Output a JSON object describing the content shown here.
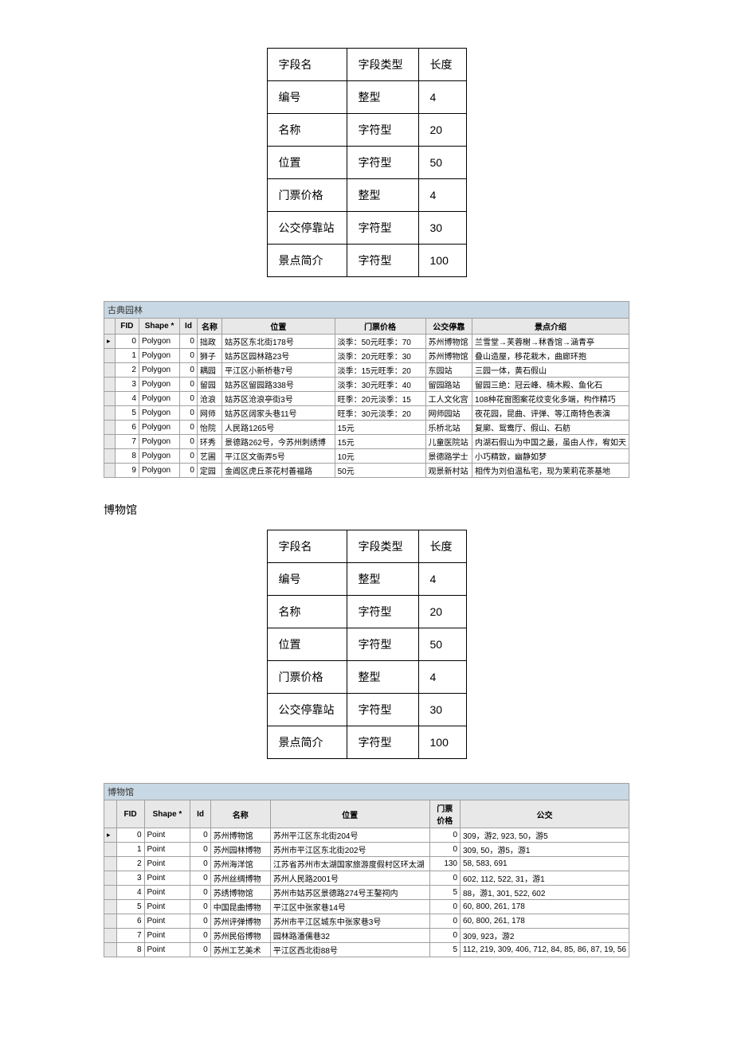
{
  "schema1": {
    "headers": [
      "字段名",
      "字段类型",
      "长度"
    ],
    "rows": [
      [
        "编号",
        "整型",
        "4"
      ],
      [
        "名称",
        "字符型",
        "20"
      ],
      [
        "位置",
        "字符型",
        "50"
      ],
      [
        "门票价格",
        "整型",
        "4"
      ],
      [
        "公交停靠站",
        "字符型",
        "30"
      ],
      [
        "景点简介",
        "字符型",
        "100"
      ]
    ]
  },
  "garden": {
    "title": "古典园林",
    "headers": [
      "FID",
      "Shape *",
      "Id",
      "名称",
      "位置",
      "门票价格",
      "公交停靠",
      "景点介绍"
    ],
    "rows": [
      [
        "0",
        "Polygon",
        "0",
        "拙政",
        "姑苏区东北街178号",
        "淡季：50元旺季：70",
        "苏州博物馆",
        "兰雪堂→芙蓉榭→秫香馆→涵青亭"
      ],
      [
        "1",
        "Polygon",
        "0",
        "狮子",
        "姑苏区园林路23号",
        "淡季：20元旺季：30",
        "苏州博物馆",
        "叠山造屋，移花栽木，曲廊环抱"
      ],
      [
        "2",
        "Polygon",
        "0",
        "耦园",
        "平江区小新桥巷7号",
        "淡季：15元旺季：20",
        "东园站",
        "三园一体，黄石假山"
      ],
      [
        "3",
        "Polygon",
        "0",
        "留园",
        "姑苏区留园路338号",
        "淡季：30元旺季：40",
        "留园路站",
        "留园三绝：冠云峰、楠木殿、鱼化石"
      ],
      [
        "4",
        "Polygon",
        "0",
        "沧浪",
        "姑苏区沧浪亭街3号",
        "旺季：20元淡季：15",
        "工人文化宫",
        "108种花窗图案花纹变化多端，构作精巧"
      ],
      [
        "5",
        "Polygon",
        "0",
        "网师",
        "姑苏区阔家头巷11号",
        "旺季：30元淡季：20",
        "网师园站",
        "夜花园，昆曲、评弹、等江南特色表演"
      ],
      [
        "6",
        "Polygon",
        "0",
        "怡院",
        "人民路1265号",
        "15元",
        "乐桥北站",
        "复廓、鸳鸯厅、假山、石舫"
      ],
      [
        "7",
        "Polygon",
        "0",
        "环秀",
        "景德路262号，今苏州刺绣博",
        "15元",
        "儿童医院站",
        "内湖石假山为中国之最，虽由人作，宥如天"
      ],
      [
        "8",
        "Polygon",
        "0",
        "艺圃",
        "平江区文衙弄5号",
        "10元",
        "景德路学士",
        "小巧精致，幽静如梦"
      ],
      [
        "9",
        "Polygon",
        "0",
        "定园",
        "金阊区虎丘茶花村善福路",
        "50元",
        "观景新村站",
        "相传为刘伯温私宅，现为茉莉花茶基地"
      ]
    ]
  },
  "section2_label": "博物馆",
  "schema2": {
    "headers": [
      "字段名",
      "字段类型",
      "长度"
    ],
    "rows": [
      [
        "编号",
        "整型",
        "4"
      ],
      [
        "名称",
        "字符型",
        "20"
      ],
      [
        "位置",
        "字符型",
        "50"
      ],
      [
        "门票价格",
        "整型",
        "4"
      ],
      [
        "公交停靠站",
        "字符型",
        "30"
      ],
      [
        "景点简介",
        "字符型",
        "100"
      ]
    ]
  },
  "museum": {
    "title": "博物馆",
    "headers": [
      "FID",
      "Shape *",
      "Id",
      "名称",
      "位置",
      "门票价格",
      "公交"
    ],
    "rows": [
      [
        "0",
        "Point",
        "0",
        "苏州博物馆",
        "苏州平江区东北街204号",
        "0",
        "309，游2, 923, 50，游5"
      ],
      [
        "1",
        "Point",
        "0",
        "苏州园林博物",
        "苏州市平江区东北街202号",
        "0",
        "309, 50，游5，游1"
      ],
      [
        "2",
        "Point",
        "0",
        "苏州海洋馆",
        "江苏省苏州市太湖国家旅游度假村区环太湖",
        "130",
        "58, 583, 691"
      ],
      [
        "3",
        "Point",
        "0",
        "苏州丝绸博物",
        "苏州人民路2001号",
        "0",
        "602, 112, 522, 31，游1"
      ],
      [
        "4",
        "Point",
        "0",
        "苏绣博物馆",
        "苏州市姑苏区景德路274号王鏊祠内",
        "5",
        "88，游1, 301, 522, 602"
      ],
      [
        "5",
        "Point",
        "0",
        "中国昆曲博物",
        "平江区中张家巷14号",
        "0",
        "60, 800, 261, 178"
      ],
      [
        "6",
        "Point",
        "0",
        "苏州评弹博物",
        "苏州市平江区城东中张家巷3号",
        "0",
        "60, 800, 261, 178"
      ],
      [
        "7",
        "Point",
        "0",
        "苏州民俗博物",
        "园林路潘儒巷32",
        "0",
        "309, 923，游2"
      ],
      [
        "8",
        "Point",
        "0",
        "苏州工艺美术",
        "平江区西北街88号",
        "5",
        "112, 219, 309, 406, 712, 84, 85, 86, 87, 19, 56"
      ]
    ]
  }
}
